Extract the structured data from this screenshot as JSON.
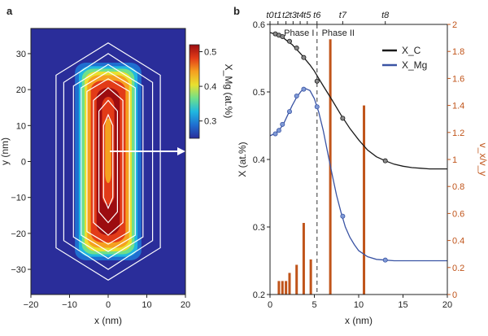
{
  "panel_a": {
    "label": "a",
    "chart_data": {
      "type": "heatmap",
      "xlabel": "x (nm)",
      "ylabel": "y (nm)",
      "xlim": [
        -20,
        20
      ],
      "ylim": [
        -37,
        37
      ],
      "xticks": [
        "−20",
        "−10",
        "0",
        "10",
        "20"
      ],
      "yticks": [
        "−30",
        "−20",
        "−10",
        "0",
        "10",
        "20",
        "30"
      ],
      "colorbar": {
        "label": "X_Mg (at.%)",
        "range": [
          0.25,
          0.52
        ],
        "ticks": [
          "0.5",
          "0.4",
          "0.3"
        ]
      },
      "colormap": [
        "#2a2d9a",
        "#1f6fd0",
        "#20b8e0",
        "#6fe08a",
        "#e8e030",
        "#f5a020",
        "#e23b18",
        "#9c0c10"
      ]
    }
  },
  "panel_b": {
    "label": "b",
    "chart_data": {
      "type": "line",
      "xlabel": "x (nm)",
      "ylabel": "X (at.%)",
      "ylabel_right": "v_x/v_y",
      "xlim": [
        0,
        20
      ],
      "ylim": [
        0.2,
        0.6
      ],
      "ylim_right": [
        0,
        2
      ],
      "xticks": [
        "0",
        "5",
        "10",
        "15",
        "20"
      ],
      "yticks": [
        "0.2",
        "0.3",
        "0.4",
        "0.5",
        "0.6"
      ],
      "yticks_right": [
        "0",
        "0.2",
        "0.4",
        "0.6",
        "0.8",
        "1",
        "1.2",
        "1.4",
        "1.6",
        "1.8",
        "2"
      ],
      "phase_divider_x": 5.3,
      "phase_labels": [
        "Phase I",
        "Phase II"
      ],
      "time_labels": [
        {
          "t": "t0",
          "x": 0.0
        },
        {
          "t": "t1",
          "x": 0.9
        },
        {
          "t": "t2",
          "x": 1.8
        },
        {
          "t": "t3",
          "x": 2.6
        },
        {
          "t": "t4",
          "x": 3.4
        },
        {
          "t": "t5",
          "x": 4.2
        },
        {
          "t": "t6",
          "x": 5.3
        },
        {
          "t": "t7",
          "x": 8.2
        },
        {
          "t": "t8",
          "x": 13.0
        }
      ],
      "series": [
        {
          "name": "X_C",
          "color": "#1a1a1a",
          "curve": [
            [
              0,
              0.588
            ],
            [
              0.5,
              0.586
            ],
            [
              1,
              0.583
            ],
            [
              1.5,
              0.58
            ],
            [
              2,
              0.575
            ],
            [
              2.5,
              0.57
            ],
            [
              3,
              0.563
            ],
            [
              3.5,
              0.556
            ],
            [
              4,
              0.548
            ],
            [
              4.5,
              0.54
            ],
            [
              5,
              0.531
            ],
            [
              5.5,
              0.52
            ],
            [
              6,
              0.509
            ],
            [
              7,
              0.488
            ],
            [
              8,
              0.466
            ],
            [
              9,
              0.446
            ],
            [
              10,
              0.429
            ],
            [
              11,
              0.414
            ],
            [
              12,
              0.404
            ],
            [
              13,
              0.398
            ],
            [
              14,
              0.393
            ],
            [
              15,
              0.39
            ],
            [
              16,
              0.388
            ],
            [
              17,
              0.387
            ],
            [
              18,
              0.386
            ],
            [
              19,
              0.386
            ],
            [
              20,
              0.386
            ]
          ],
          "markers": [
            [
              0.6,
              0.586
            ],
            [
              1.0,
              0.584
            ],
            [
              1.4,
              0.582
            ],
            [
              2.2,
              0.575
            ],
            [
              3.0,
              0.565
            ],
            [
              3.8,
              0.551
            ],
            [
              5.3,
              0.516
            ],
            [
              8.2,
              0.461
            ],
            [
              13.0,
              0.398
            ]
          ]
        },
        {
          "name": "X_Mg",
          "color": "#3a54a4",
          "curve": [
            [
              0,
              0.435
            ],
            [
              0.5,
              0.438
            ],
            [
              1,
              0.443
            ],
            [
              1.5,
              0.452
            ],
            [
              2,
              0.466
            ],
            [
              2.5,
              0.48
            ],
            [
              3,
              0.492
            ],
            [
              3.5,
              0.501
            ],
            [
              4,
              0.505
            ],
            [
              4.5,
              0.502
            ],
            [
              5,
              0.49
            ],
            [
              5.5,
              0.47
            ],
            [
              6,
              0.443
            ],
            [
              6.5,
              0.41
            ],
            [
              7,
              0.378
            ],
            [
              7.5,
              0.347
            ],
            [
              8,
              0.322
            ],
            [
              8.5,
              0.3
            ],
            [
              9,
              0.285
            ],
            [
              9.5,
              0.274
            ],
            [
              10,
              0.265
            ],
            [
              11,
              0.256
            ],
            [
              12,
              0.252
            ],
            [
              13,
              0.251
            ],
            [
              14,
              0.25
            ],
            [
              16,
              0.25
            ],
            [
              18,
              0.25
            ],
            [
              20,
              0.25
            ]
          ],
          "markers": [
            [
              0.6,
              0.438
            ],
            [
              1.0,
              0.443
            ],
            [
              1.4,
              0.452
            ],
            [
              2.2,
              0.471
            ],
            [
              3.0,
              0.494
            ],
            [
              3.8,
              0.504
            ],
            [
              5.3,
              0.478
            ],
            [
              8.2,
              0.316
            ],
            [
              13.0,
              0.251
            ]
          ]
        }
      ],
      "bars": {
        "name": "v_x/v_y",
        "color": "#c0541a",
        "x": [
          1.0,
          1.4,
          1.8,
          2.2,
          3.0,
          3.8,
          4.6,
          6.8,
          10.6
        ],
        "values": [
          0.1,
          0.1,
          0.1,
          0.16,
          0.22,
          0.53,
          0.26,
          1.89,
          1.4
        ]
      }
    }
  }
}
